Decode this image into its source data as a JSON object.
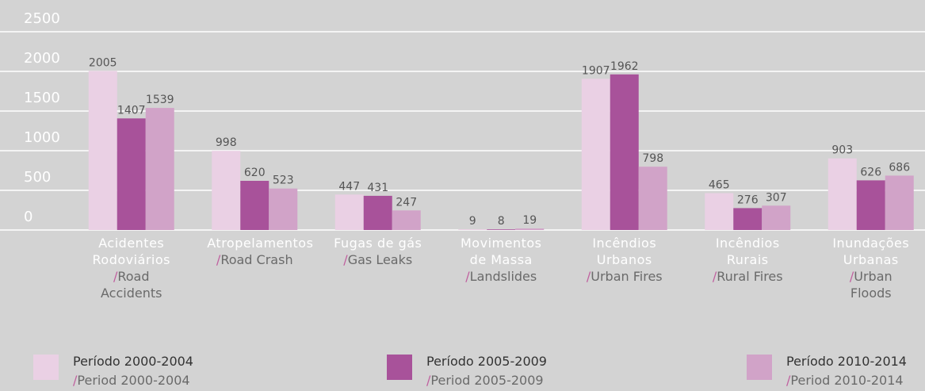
{
  "chart_data": {
    "type": "bar",
    "categories": [
      "Acidentes Rodoviários",
      "Atropelamentos",
      "Fugas de gás",
      "Movimentos de Massa",
      "Incêndios Urbanos",
      "Incêndios Rurais",
      "Inundações Urbanas"
    ],
    "categories_en": [
      "/Road Accidents",
      "/Road Crash",
      "/Gas Leaks",
      "/Landslides",
      "/Urban Fires",
      "/Rural Fires",
      "/Urban Floods"
    ],
    "series": [
      {
        "name": "Período 2000-2004",
        "name_en": "/Period 2000-2004",
        "color": "#ead0e4",
        "values": [
          2005,
          998,
          447,
          9,
          1907,
          465,
          903
        ]
      },
      {
        "name": "Período 2005-2009",
        "name_en": "/Period 2005-2009",
        "color": "#a8529a",
        "values": [
          1407,
          620,
          431,
          8,
          1962,
          276,
          626
        ]
      },
      {
        "name": "Período 2010-2014",
        "name_en": "/Period 2010-2014",
        "color": "#d1a3c8",
        "values": [
          1539,
          523,
          247,
          19,
          798,
          307,
          686
        ]
      }
    ],
    "ylim": [
      0,
      2500
    ],
    "yticks": [
      0,
      500,
      1000,
      1500,
      2000,
      2500
    ],
    "grid": true
  }
}
